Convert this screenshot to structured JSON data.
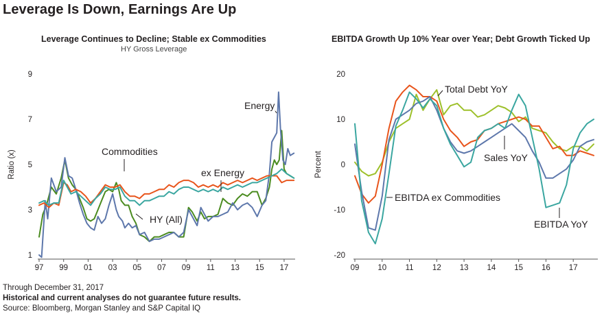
{
  "header": {
    "title": "Leverage Is Down, Earnings Are Up"
  },
  "footer": {
    "note": "Through December 31, 2017",
    "disclaimer": "Historical and current analyses do not guarantee future results.",
    "source": "Source: Bloomberg, Morgan Stanley and S&P Capital IQ"
  },
  "chart_data": [
    {
      "type": "line",
      "title": "Leverage Continues to Decline; Stable ex Commodities",
      "subtitle": "HY Gross Leverage",
      "ylabel": "Ratio (x)",
      "xlabel": "",
      "ylim": [
        1,
        9
      ],
      "xlim": [
        1997,
        2017.9
      ],
      "y_ticks": [
        1,
        3,
        5,
        7,
        9
      ],
      "x_ticks": [
        1997,
        1999,
        2001,
        2003,
        2005,
        2007,
        2009,
        2011,
        2013,
        2015,
        2017
      ],
      "x_tick_labels": [
        "97",
        "99",
        "01",
        "03",
        "05",
        "07",
        "09",
        "11",
        "13",
        "15",
        "17"
      ],
      "grid": false,
      "series": [
        {
          "name": "Commodities",
          "color": "#4a8b1f",
          "x": [
            1997.0,
            1997.3,
            1997.6,
            1998.0,
            1998.4,
            1998.8,
            1999.1,
            1999.4,
            1999.7,
            2000.0,
            2000.3,
            2000.6,
            2000.9,
            2001.2,
            2001.5,
            2001.8,
            2002.1,
            2002.4,
            2002.7,
            2003.0,
            2003.3,
            2003.5,
            2003.7,
            2004.0,
            2004.3,
            2004.6,
            2004.9,
            2005.2,
            2005.6,
            2006.0,
            2006.4,
            2006.8,
            2007.2,
            2007.6,
            2008.0,
            2008.4,
            2008.8,
            2009.2,
            2009.5,
            2009.9,
            2010.2,
            2010.5,
            2010.8,
            2011.2,
            2011.6,
            2012.0,
            2012.4,
            2012.8,
            2013.2,
            2013.6,
            2014.0,
            2014.4,
            2014.8,
            2015.2,
            2015.5,
            2015.8,
            2016.0,
            2016.2,
            2016.4,
            2016.6,
            2016.8,
            2017.0,
            2017.2,
            2017.5,
            2017.8
          ],
          "values": [
            1.8,
            2.8,
            3.2,
            4.0,
            3.7,
            4.4,
            5.2,
            4.4,
            4.1,
            3.9,
            3.5,
            3.1,
            2.6,
            2.5,
            2.6,
            3.0,
            3.4,
            3.8,
            3.9,
            3.8,
            4.2,
            3.9,
            3.4,
            3.2,
            3.2,
            2.7,
            2.4,
            1.9,
            1.8,
            1.6,
            1.8,
            1.8,
            1.9,
            2.0,
            2.0,
            1.8,
            1.8,
            3.1,
            2.9,
            2.5,
            2.9,
            2.6,
            2.7,
            2.7,
            2.8,
            3.5,
            3.3,
            3.2,
            3.5,
            3.7,
            3.6,
            3.8,
            3.8,
            3.2,
            3.5,
            4.0,
            4.8,
            5.2,
            5.0,
            5.2,
            6.5,
            4.8,
            4.6,
            4.5,
            4.4
          ]
        },
        {
          "name": "Energy",
          "color": "#5d77ab",
          "x": [
            1997.0,
            1997.2,
            1997.5,
            1997.7,
            1998.0,
            1998.4,
            1998.8,
            1999.1,
            1999.4,
            1999.7,
            2000.0,
            2000.3,
            2000.6,
            2000.9,
            2001.2,
            2001.5,
            2001.8,
            2002.1,
            2002.4,
            2002.7,
            2003.0,
            2003.3,
            2003.5,
            2003.8,
            2004.0,
            2004.3,
            2004.6,
            2004.9,
            2005.2,
            2005.6,
            2006.0,
            2006.4,
            2006.8,
            2007.2,
            2007.6,
            2008.0,
            2008.4,
            2008.8,
            2009.2,
            2009.5,
            2009.9,
            2010.2,
            2010.5,
            2010.8,
            2011.2,
            2011.6,
            2012.0,
            2012.4,
            2012.8,
            2013.2,
            2013.6,
            2014.0,
            2014.4,
            2014.8,
            2015.2,
            2015.5,
            2015.8,
            2016.0,
            2016.2,
            2016.4,
            2016.55,
            2016.7,
            2016.9,
            2017.1,
            2017.3,
            2017.5,
            2017.8
          ],
          "values": [
            1.0,
            0.9,
            3.4,
            2.6,
            4.4,
            3.8,
            4.0,
            5.3,
            4.5,
            4.4,
            3.9,
            3.3,
            2.8,
            2.4,
            2.2,
            2.1,
            2.7,
            2.4,
            2.6,
            3.2,
            3.7,
            3.0,
            2.7,
            2.5,
            2.2,
            2.4,
            2.2,
            2.3,
            1.9,
            2.0,
            1.6,
            1.7,
            1.7,
            1.8,
            1.9,
            2.0,
            1.8,
            2.0,
            3.0,
            2.7,
            2.3,
            3.1,
            2.8,
            2.5,
            2.7,
            2.7,
            2.8,
            2.9,
            3.3,
            3.0,
            3.2,
            3.3,
            3.1,
            2.7,
            3.2,
            3.4,
            4.6,
            6.0,
            6.2,
            6.4,
            8.2,
            6.6,
            5.2,
            5.0,
            5.7,
            5.4,
            5.5
          ]
        },
        {
          "name": "ex Energy",
          "color": "#e8541b",
          "x": [
            1997.0,
            1997.4,
            1997.8,
            1998.2,
            1998.6,
            1999.0,
            1999.3,
            1999.6,
            2000.0,
            2000.4,
            2000.8,
            2001.2,
            2001.6,
            2002.0,
            2002.4,
            2002.8,
            2003.2,
            2003.6,
            2004.0,
            2004.4,
            2004.8,
            2005.2,
            2005.6,
            2006.0,
            2006.4,
            2006.8,
            2007.2,
            2007.6,
            2008.0,
            2008.4,
            2008.8,
            2009.2,
            2009.6,
            2010.0,
            2010.4,
            2010.8,
            2011.2,
            2011.6,
            2012.0,
            2012.4,
            2012.8,
            2013.2,
            2013.6,
            2014.0,
            2014.4,
            2014.8,
            2015.2,
            2015.6,
            2016.0,
            2016.4,
            2016.8,
            2017.2,
            2017.5,
            2017.8
          ],
          "values": [
            3.2,
            3.3,
            3.1,
            3.3,
            3.2,
            4.2,
            4.1,
            3.8,
            3.9,
            3.8,
            3.6,
            3.3,
            3.5,
            3.8,
            4.1,
            4.0,
            4.0,
            4.1,
            3.8,
            3.6,
            3.6,
            3.5,
            3.7,
            3.7,
            3.8,
            3.9,
            3.9,
            4.1,
            4.0,
            4.2,
            4.3,
            4.3,
            4.2,
            4.0,
            4.1,
            4.0,
            4.1,
            4.0,
            4.2,
            4.1,
            4.2,
            4.3,
            4.2,
            4.3,
            4.4,
            4.3,
            4.4,
            4.5,
            4.5,
            4.5,
            4.2,
            4.3,
            4.3,
            4.3
          ]
        },
        {
          "name": "HY (All)",
          "color": "#3aa6a0",
          "x": [
            1997.0,
            1997.4,
            1997.8,
            1998.2,
            1998.6,
            1999.0,
            1999.3,
            1999.6,
            2000.0,
            2000.4,
            2000.8,
            2001.2,
            2001.6,
            2002.0,
            2002.4,
            2002.8,
            2003.2,
            2003.6,
            2004.0,
            2004.4,
            2004.8,
            2005.2,
            2005.6,
            2006.0,
            2006.4,
            2006.8,
            2007.2,
            2007.6,
            2008.0,
            2008.4,
            2008.8,
            2009.2,
            2009.6,
            2010.0,
            2010.4,
            2010.8,
            2011.2,
            2011.6,
            2012.0,
            2012.4,
            2012.8,
            2013.2,
            2013.6,
            2014.0,
            2014.4,
            2014.8,
            2015.2,
            2015.6,
            2016.0,
            2016.4,
            2016.8,
            2017.2,
            2017.5,
            2017.8
          ],
          "values": [
            3.3,
            3.4,
            3.2,
            3.3,
            3.3,
            4.3,
            4.0,
            3.7,
            3.8,
            3.6,
            3.4,
            3.2,
            3.5,
            3.7,
            4.0,
            3.9,
            3.9,
            4.0,
            3.6,
            3.4,
            3.4,
            3.2,
            3.4,
            3.4,
            3.5,
            3.6,
            3.6,
            3.8,
            3.7,
            3.9,
            4.0,
            4.0,
            3.9,
            3.8,
            3.9,
            3.8,
            3.9,
            3.8,
            4.0,
            3.9,
            4.0,
            4.1,
            4.0,
            4.1,
            4.2,
            4.2,
            4.3,
            4.4,
            4.5,
            4.6,
            4.8,
            4.6,
            4.5,
            4.4
          ]
        }
      ],
      "annotations": [
        "Energy",
        "Commodities",
        "ex Energy",
        "HY (All)"
      ]
    },
    {
      "type": "line",
      "title": "EBITDA Growth Up 10% Year over Year; Debt Growth Ticked Up",
      "ylabel": "Percent",
      "xlabel": "",
      "ylim": [
        -20,
        20
      ],
      "xlim": [
        2009,
        2017.9
      ],
      "y_ticks": [
        -20,
        -10,
        0,
        10,
        20
      ],
      "x_ticks": [
        2009,
        2010,
        2011,
        2012,
        2013,
        2014,
        2015,
        2016,
        2017
      ],
      "x_tick_labels": [
        "09",
        "10",
        "11",
        "12",
        "13",
        "14",
        "15",
        "16",
        "17"
      ],
      "grid": false,
      "series": [
        {
          "name": "Total Debt YoY",
          "color": "#9dc02a",
          "x": [
            2009.0,
            2009.25,
            2009.5,
            2009.75,
            2010.0,
            2010.25,
            2010.5,
            2010.75,
            2011.0,
            2011.25,
            2011.5,
            2011.75,
            2012.0,
            2012.25,
            2012.5,
            2012.75,
            2013.0,
            2013.25,
            2013.5,
            2013.75,
            2014.0,
            2014.25,
            2014.5,
            2014.75,
            2015.0,
            2015.25,
            2015.5,
            2015.75,
            2016.0,
            2016.25,
            2016.5,
            2016.75,
            2017.0,
            2017.25,
            2017.5,
            2017.75
          ],
          "values": [
            0.5,
            -1.5,
            -2.5,
            -2.0,
            0.5,
            5.0,
            8.0,
            9.0,
            10.0,
            15.5,
            12.0,
            14.5,
            16.5,
            11.0,
            13.0,
            13.5,
            12.0,
            12.0,
            10.5,
            11.0,
            12.0,
            13.0,
            12.5,
            11.5,
            9.5,
            10.5,
            8.0,
            7.5,
            7.0,
            5.0,
            3.5,
            3.0,
            4.0,
            4.0,
            3.0,
            4.5
          ]
        },
        {
          "name": "Sales YoY",
          "color": "#e8541b",
          "x": [
            2009.0,
            2009.25,
            2009.5,
            2009.75,
            2010.0,
            2010.25,
            2010.5,
            2010.75,
            2011.0,
            2011.25,
            2011.5,
            2011.75,
            2012.0,
            2012.25,
            2012.5,
            2012.75,
            2013.0,
            2013.25,
            2013.5,
            2013.75,
            2014.0,
            2014.25,
            2014.5,
            2014.75,
            2015.0,
            2015.25,
            2015.5,
            2015.75,
            2016.0,
            2016.25,
            2016.5,
            2016.75,
            2017.0,
            2017.25,
            2017.5,
            2017.75
          ],
          "values": [
            -2.5,
            -6.5,
            -8.5,
            -7.0,
            0.0,
            8.0,
            14.0,
            16.0,
            17.5,
            16.5,
            15.0,
            15.0,
            14.0,
            10.0,
            7.5,
            6.0,
            4.0,
            5.0,
            5.5,
            7.5,
            8.0,
            9.0,
            9.5,
            10.0,
            10.5,
            10.0,
            8.5,
            8.5,
            6.0,
            3.5,
            4.0,
            2.0,
            2.0,
            3.0,
            2.5,
            2.0
          ]
        },
        {
          "name": "EBITDA ex Commodities",
          "color": "#5d77ab",
          "x": [
            2009.0,
            2009.25,
            2009.5,
            2009.75,
            2010.0,
            2010.25,
            2010.5,
            2010.75,
            2011.0,
            2011.25,
            2011.5,
            2011.75,
            2012.0,
            2012.25,
            2012.5,
            2012.75,
            2013.0,
            2013.25,
            2013.5,
            2013.75,
            2014.0,
            2014.25,
            2014.5,
            2014.75,
            2015.0,
            2015.25,
            2015.5,
            2015.75,
            2016.0,
            2016.25,
            2016.5,
            2016.75,
            2017.0,
            2017.25,
            2017.5,
            2017.75
          ],
          "values": [
            4.5,
            -6.0,
            -14.0,
            -14.5,
            -7.0,
            5.5,
            10.0,
            11.0,
            12.0,
            13.5,
            14.0,
            15.0,
            12.0,
            8.0,
            5.0,
            3.0,
            2.5,
            3.0,
            4.0,
            5.0,
            6.0,
            7.0,
            8.0,
            9.0,
            7.5,
            6.0,
            3.0,
            0.5,
            -3.0,
            -3.0,
            -2.0,
            -1.0,
            1.0,
            4.0,
            5.0,
            5.5
          ]
        },
        {
          "name": "EBITDA YoY",
          "color": "#3aa6a0",
          "x": [
            2009.0,
            2009.25,
            2009.5,
            2009.75,
            2010.0,
            2010.25,
            2010.5,
            2010.75,
            2011.0,
            2011.25,
            2011.5,
            2011.75,
            2012.0,
            2012.25,
            2012.5,
            2012.75,
            2013.0,
            2013.25,
            2013.5,
            2013.75,
            2014.0,
            2014.25,
            2014.5,
            2014.75,
            2015.0,
            2015.25,
            2015.5,
            2015.75,
            2016.0,
            2016.25,
            2016.5,
            2016.75,
            2017.0,
            2017.25,
            2017.5,
            2017.75
          ],
          "values": [
            9.0,
            -8.0,
            -15.0,
            -17.5,
            -12.0,
            -2.0,
            8.5,
            12.0,
            16.0,
            14.5,
            12.5,
            14.5,
            13.0,
            8.0,
            4.5,
            2.0,
            -0.5,
            0.5,
            6.0,
            7.5,
            8.0,
            9.0,
            8.0,
            12.0,
            15.5,
            13.0,
            6.0,
            -1.0,
            -9.5,
            -9.0,
            -8.5,
            -4.5,
            3.5,
            7.0,
            9.0,
            10.0
          ]
        }
      ],
      "annotations": [
        "Total Debt YoY",
        "Sales YoY",
        "EBITDA ex Commodities",
        "EBITDA YoY"
      ]
    }
  ]
}
